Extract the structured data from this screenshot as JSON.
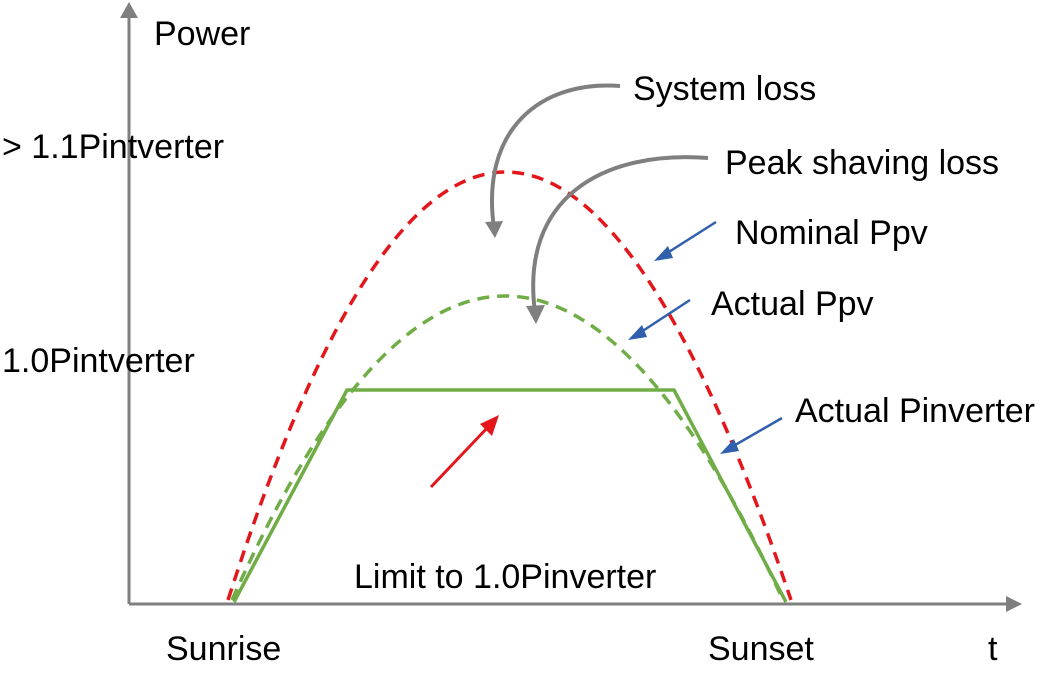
{
  "labels": {
    "y_axis_title": "Power",
    "x_axis_title": "t",
    "level_high": "> 1.1Pintverter",
    "level_nominal": "1.0Pintverter",
    "system_loss": "System loss",
    "peak_shaving_loss": "Peak shaving loss",
    "nominal_ppv": "Nominal Ppv",
    "actual_ppv": "Actual Ppv",
    "actual_pinverter": "Actual Pinverter",
    "limit": "Limit to 1.0Pinverter",
    "sunrise": "Sunrise",
    "sunset": "Sunset"
  },
  "colors": {
    "axis": "#7f7f7f",
    "nominal_ppv_curve": "#e3171b",
    "actual_ppv_curve": "#70ad47",
    "actual_pinverter_curve": "#70ad47",
    "loss_arrows": "#7f7f7f",
    "pointer_arrows": "#2f5fad",
    "limit_arrow": "#e3171b"
  },
  "curves": {
    "nominal_ppv": {
      "style": "dashed",
      "shape": "bell"
    },
    "actual_ppv": {
      "style": "dashed",
      "shape": "bell"
    },
    "actual_pinverter": {
      "style": "solid",
      "shape": "clipped-trapezoid"
    }
  }
}
